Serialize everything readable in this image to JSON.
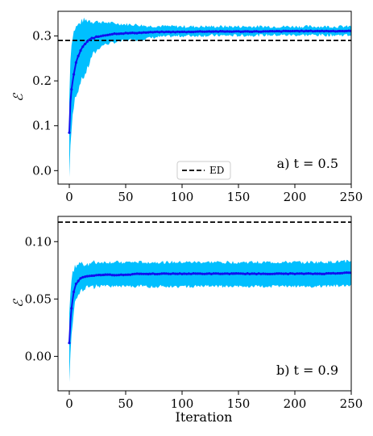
{
  "figure": {
    "xlabel": "Iteration"
  },
  "colors": {
    "band": "#00bfff",
    "mean_line": "#1010ee",
    "reference": "#000000",
    "axes": "#000000"
  },
  "chart_data": [
    {
      "type": "line",
      "panel_label": "a) t = 0.5",
      "ylabel": "ℰ",
      "xlim": [
        -10,
        250
      ],
      "ylim": [
        -0.03,
        0.355
      ],
      "x_ticks": [
        0,
        50,
        100,
        150,
        200,
        250
      ],
      "x_tick_labels": [
        "0",
        "50",
        "100",
        "150",
        "200",
        "250"
      ],
      "y_ticks": [
        0.0,
        0.1,
        0.2,
        0.3
      ],
      "y_tick_labels": [
        "0.0",
        "0.1",
        "0.2",
        "0.3"
      ],
      "legend": {
        "position": "bottom-center",
        "entries": [
          "ED"
        ]
      },
      "reference_line": {
        "name": "ED",
        "value": 0.29,
        "style": "dashed"
      },
      "series": [
        {
          "kind": "mean",
          "x": [
            0,
            1,
            2,
            3,
            4,
            5,
            6,
            8,
            10,
            12,
            15,
            18,
            20,
            25,
            30,
            35,
            40,
            50,
            60,
            70,
            80,
            100,
            120,
            150,
            175,
            200,
            225,
            250
          ],
          "values": [
            0.085,
            0.15,
            0.18,
            0.2,
            0.215,
            0.228,
            0.24,
            0.255,
            0.268,
            0.276,
            0.285,
            0.291,
            0.295,
            0.298,
            0.301,
            0.303,
            0.305,
            0.306,
            0.307,
            0.308,
            0.309,
            0.309,
            0.31,
            0.31,
            0.31,
            0.311,
            0.311,
            0.311
          ]
        },
        {
          "kind": "band",
          "x": [
            0,
            1,
            2,
            3,
            4,
            5,
            6,
            8,
            10,
            12,
            15,
            18,
            20,
            25,
            30,
            35,
            40,
            50,
            60,
            70,
            80,
            100,
            120,
            150,
            175,
            200,
            225,
            250
          ],
          "lower": [
            -0.015,
            0.06,
            0.09,
            0.12,
            0.14,
            0.16,
            0.17,
            0.18,
            0.2,
            0.205,
            0.22,
            0.24,
            0.255,
            0.27,
            0.28,
            0.283,
            0.286,
            0.29,
            0.292,
            0.295,
            0.298,
            0.3,
            0.301,
            0.301,
            0.302,
            0.302,
            0.302,
            0.302
          ],
          "upper": [
            0.16,
            0.25,
            0.28,
            0.3,
            0.31,
            0.315,
            0.32,
            0.325,
            0.33,
            0.335,
            0.335,
            0.335,
            0.333,
            0.332,
            0.33,
            0.33,
            0.328,
            0.326,
            0.325,
            0.322,
            0.322,
            0.321,
            0.321,
            0.321,
            0.321,
            0.321,
            0.321,
            0.321
          ]
        }
      ]
    },
    {
      "type": "line",
      "panel_label": "b) t = 0.9",
      "ylabel": "ℰ",
      "xlim": [
        -10,
        250
      ],
      "ylim": [
        -0.03,
        0.122
      ],
      "x_ticks": [
        0,
        50,
        100,
        150,
        200,
        250
      ],
      "x_tick_labels": [
        "0",
        "50",
        "100",
        "150",
        "200",
        "250"
      ],
      "y_ticks": [
        0.0,
        0.05,
        0.1
      ],
      "y_tick_labels": [
        "0.00",
        "0.05",
        "0.10"
      ],
      "reference_line": {
        "name": "ED",
        "value": 0.117,
        "style": "dashed"
      },
      "series": [
        {
          "kind": "mean",
          "x": [
            0,
            1,
            2,
            3,
            4,
            5,
            6,
            8,
            10,
            12,
            15,
            20,
            25,
            30,
            40,
            50,
            60,
            80,
            100,
            120,
            150,
            175,
            200,
            225,
            250
          ],
          "values": [
            0.012,
            0.03,
            0.042,
            0.05,
            0.056,
            0.06,
            0.063,
            0.066,
            0.068,
            0.069,
            0.07,
            0.07,
            0.071,
            0.071,
            0.071,
            0.071,
            0.072,
            0.072,
            0.072,
            0.072,
            0.072,
            0.072,
            0.072,
            0.072,
            0.073
          ]
        },
        {
          "kind": "band",
          "x": [
            0,
            1,
            2,
            3,
            4,
            5,
            6,
            8,
            10,
            12,
            15,
            20,
            25,
            30,
            40,
            50,
            60,
            80,
            100,
            120,
            150,
            175,
            200,
            225,
            250
          ],
          "lower": [
            -0.022,
            0.005,
            0.02,
            0.03,
            0.04,
            0.045,
            0.05,
            0.055,
            0.058,
            0.059,
            0.06,
            0.06,
            0.061,
            0.061,
            0.061,
            0.061,
            0.061,
            0.061,
            0.061,
            0.061,
            0.061,
            0.061,
            0.061,
            0.061,
            0.062
          ],
          "upper": [
            0.04,
            0.055,
            0.065,
            0.072,
            0.076,
            0.078,
            0.079,
            0.08,
            0.081,
            0.081,
            0.081,
            0.081,
            0.082,
            0.082,
            0.082,
            0.082,
            0.082,
            0.082,
            0.082,
            0.082,
            0.082,
            0.082,
            0.082,
            0.082,
            0.083
          ]
        }
      ]
    }
  ]
}
